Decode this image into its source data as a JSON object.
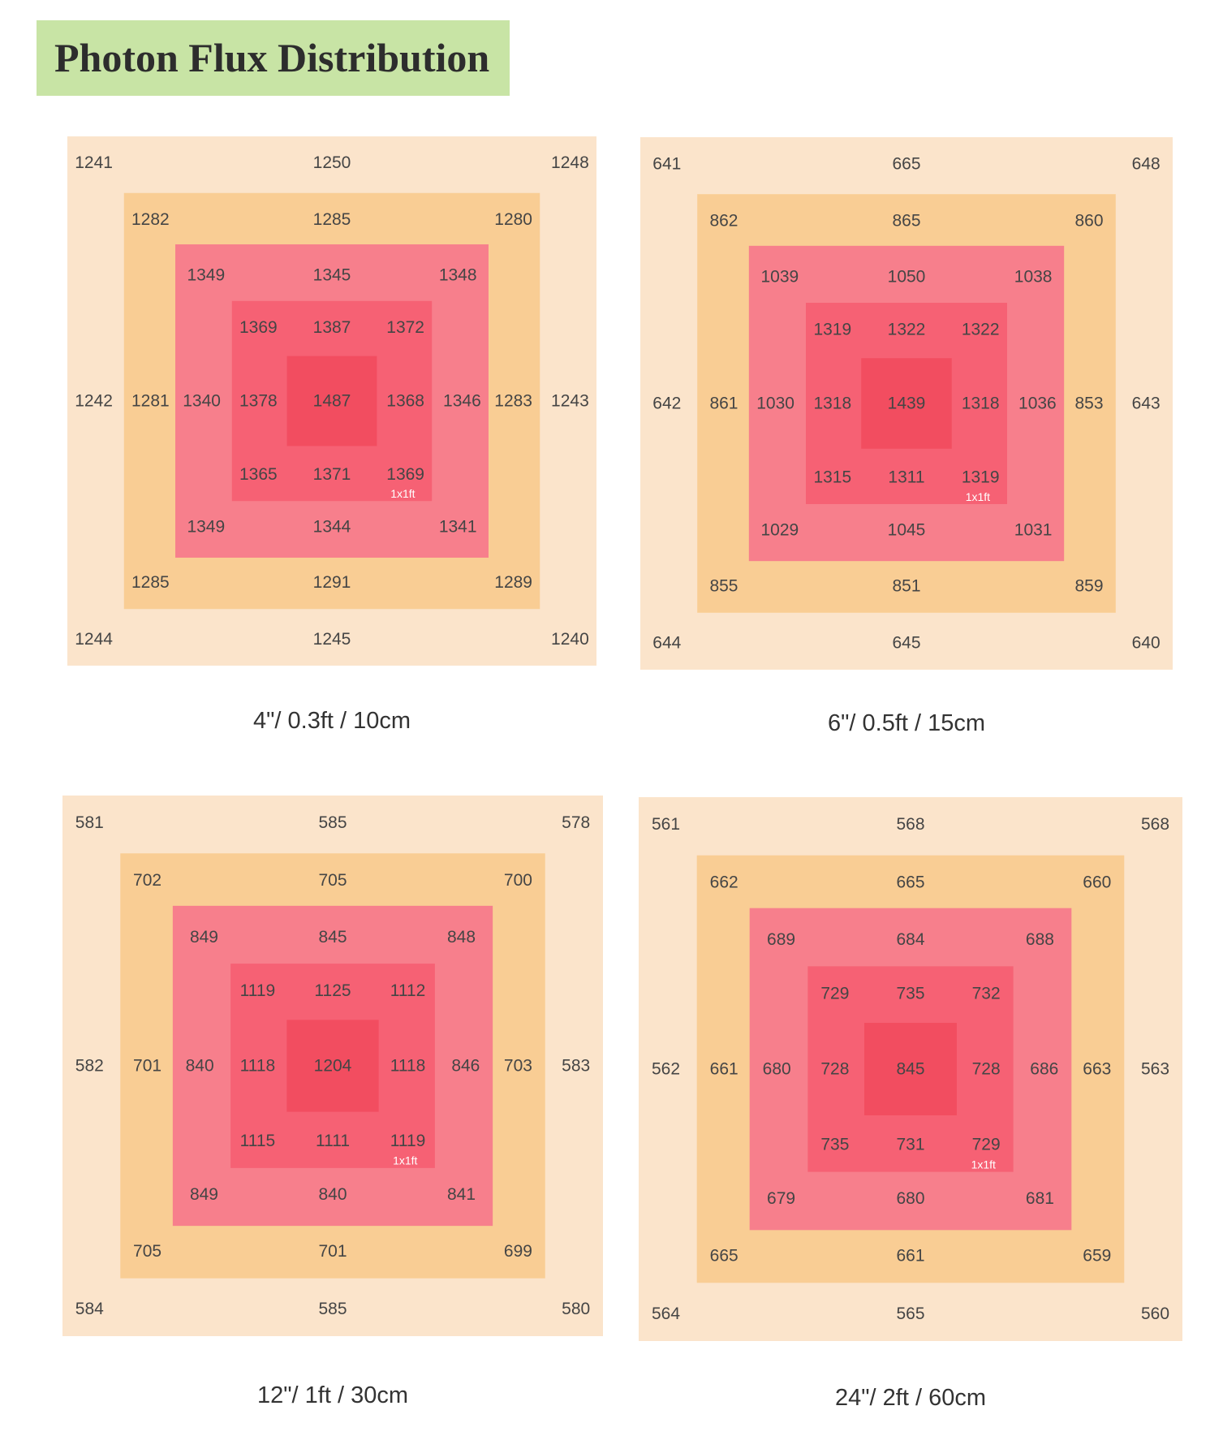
{
  "title": "Photon Flux Distribution",
  "colors": {
    "title_bg": "#c8e4a5",
    "ring_outer": "#fbe4cb",
    "ring_2": "#f9cd94",
    "ring_3": "#f77f8c",
    "ring_4": "#f66174",
    "center": "#f24d60",
    "value_text": "#454545",
    "area_label": "#ffffff"
  },
  "chart_data": [
    {
      "type": "heatmap",
      "caption": "4\"/ 0.3ft / 10cm",
      "area_label": "1x1ft",
      "rings": [
        {
          "top": [
            1241,
            1250,
            1248
          ],
          "middle": [
            1242,
            1243
          ],
          "bottom": [
            1244,
            1245,
            1240
          ]
        },
        {
          "top": [
            1282,
            1285,
            1280
          ],
          "middle": [
            1281,
            1283
          ],
          "bottom": [
            1285,
            1291,
            1289
          ]
        },
        {
          "top": [
            1349,
            1345,
            1348
          ],
          "middle": [
            1340,
            1346
          ],
          "bottom": [
            1349,
            1344,
            1341
          ]
        },
        {
          "top": [
            1369,
            1387,
            1372
          ],
          "middle": [
            1378,
            1368
          ],
          "bottom": [
            1365,
            1371,
            1369
          ]
        }
      ],
      "center": 1487
    },
    {
      "type": "heatmap",
      "caption": "6\"/ 0.5ft / 15cm",
      "area_label": "1x1ft",
      "rings": [
        {
          "top": [
            641,
            665,
            648
          ],
          "middle": [
            642,
            643
          ],
          "bottom": [
            644,
            645,
            640
          ]
        },
        {
          "top": [
            862,
            865,
            860
          ],
          "middle": [
            861,
            853
          ],
          "bottom": [
            855,
            851,
            859
          ]
        },
        {
          "top": [
            1039,
            1050,
            1038
          ],
          "middle": [
            1030,
            1036
          ],
          "bottom": [
            1029,
            1045,
            1031
          ]
        },
        {
          "top": [
            1319,
            1322,
            1322
          ],
          "middle": [
            1318,
            1318
          ],
          "bottom": [
            1315,
            1311,
            1319
          ]
        }
      ],
      "center": 1439
    },
    {
      "type": "heatmap",
      "caption": "12\"/ 1ft / 30cm",
      "area_label": "1x1ft",
      "rings": [
        {
          "top": [
            581,
            585,
            578
          ],
          "middle": [
            582,
            583
          ],
          "bottom": [
            584,
            585,
            580
          ]
        },
        {
          "top": [
            702,
            705,
            700
          ],
          "middle": [
            701,
            703
          ],
          "bottom": [
            705,
            701,
            699
          ]
        },
        {
          "top": [
            849,
            845,
            848
          ],
          "middle": [
            840,
            846
          ],
          "bottom": [
            849,
            840,
            841
          ]
        },
        {
          "top": [
            1119,
            1125,
            1112
          ],
          "middle": [
            1118,
            1118
          ],
          "bottom": [
            1115,
            1111,
            1119
          ]
        }
      ],
      "center": 1204
    },
    {
      "type": "heatmap",
      "caption": "24\"/ 2ft / 60cm",
      "area_label": "1x1ft",
      "rings": [
        {
          "top": [
            561,
            568,
            568
          ],
          "middle": [
            562,
            563
          ],
          "bottom": [
            564,
            565,
            560
          ]
        },
        {
          "top": [
            662,
            665,
            660
          ],
          "middle": [
            661,
            663
          ],
          "bottom": [
            665,
            661,
            659
          ]
        },
        {
          "top": [
            689,
            684,
            688
          ],
          "middle": [
            680,
            686
          ],
          "bottom": [
            679,
            680,
            681
          ]
        },
        {
          "top": [
            729,
            735,
            732
          ],
          "middle": [
            728,
            728
          ],
          "bottom": [
            735,
            731,
            729
          ]
        }
      ],
      "center": 845
    }
  ]
}
